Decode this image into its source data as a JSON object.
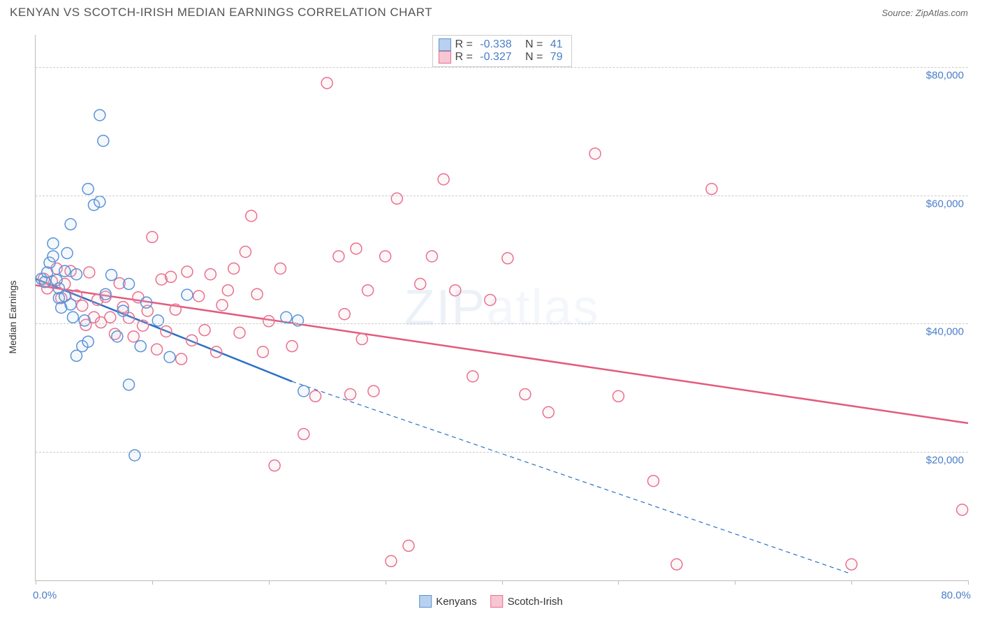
{
  "title": "KENYAN VS SCOTCH-IRISH MEDIAN EARNINGS CORRELATION CHART",
  "source": "Source: ZipAtlas.com",
  "y_axis_title": "Median Earnings",
  "watermark": {
    "bold": "ZIP",
    "light": "atlas"
  },
  "chart": {
    "type": "scatter",
    "background_color": "#ffffff",
    "grid_color": "#cccccc",
    "axis_color": "#bbbbbb",
    "xlim": [
      0,
      80
    ],
    "ylim": [
      0,
      85000
    ],
    "x_ticks": [
      0,
      10,
      20,
      30,
      40,
      50,
      60,
      70,
      80
    ],
    "x_range_labels": [
      "0.0%",
      "80.0%"
    ],
    "y_gridlines": [
      20000,
      40000,
      60000,
      80000
    ],
    "y_labels": [
      "$20,000",
      "$40,000",
      "$60,000",
      "$80,000"
    ],
    "label_color": "#4a7ec9",
    "label_fontsize": 15,
    "marker_radius": 8,
    "marker_stroke_width": 1.5,
    "marker_fill_opacity": 0.15
  },
  "top_legend": [
    {
      "swatch_fill": "#b8d1ee",
      "swatch_stroke": "#5a93d6",
      "R": "-0.338",
      "N": "41"
    },
    {
      "swatch_fill": "#f6c6d2",
      "swatch_stroke": "#e8708f",
      "R": "-0.327",
      "N": "79"
    }
  ],
  "bottom_legend": [
    {
      "label": "Kenyans",
      "swatch_fill": "#b8d1ee",
      "swatch_stroke": "#5a93d6"
    },
    {
      "label": "Scotch-Irish",
      "swatch_fill": "#f6c6d2",
      "swatch_stroke": "#e8708f"
    }
  ],
  "series": [
    {
      "name": "Kenyans",
      "color_stroke": "#5a93d6",
      "color_fill": "#b8d1ee",
      "trend": {
        "color": "#2b6fc4",
        "width": 2.5,
        "x1": 0,
        "y1": 47000,
        "x2": 22,
        "y2": 31000,
        "dash_extend_to_x": 70,
        "dash_y": 1000
      },
      "points": [
        [
          0.5,
          47000
        ],
        [
          0.8,
          46500
        ],
        [
          1.0,
          48000
        ],
        [
          1.2,
          49500
        ],
        [
          1.5,
          50500
        ],
        [
          1.5,
          52500
        ],
        [
          1.8,
          46800
        ],
        [
          2.0,
          44000
        ],
        [
          2.0,
          45500
        ],
        [
          2.2,
          42500
        ],
        [
          2.5,
          44300
        ],
        [
          2.5,
          48200
        ],
        [
          2.7,
          51000
        ],
        [
          3.0,
          55500
        ],
        [
          3.0,
          43000
        ],
        [
          3.2,
          41000
        ],
        [
          3.5,
          47700
        ],
        [
          3.5,
          35000
        ],
        [
          4.0,
          36500
        ],
        [
          4.2,
          40500
        ],
        [
          4.5,
          37200
        ],
        [
          4.5,
          61000
        ],
        [
          5.0,
          58500
        ],
        [
          5.5,
          59000
        ],
        [
          5.5,
          72500
        ],
        [
          5.8,
          68500
        ],
        [
          6.0,
          44600
        ],
        [
          6.5,
          47600
        ],
        [
          7.0,
          38000
        ],
        [
          7.5,
          42000
        ],
        [
          8.0,
          46200
        ],
        [
          8.0,
          30500
        ],
        [
          8.5,
          19500
        ],
        [
          9.0,
          36500
        ],
        [
          9.5,
          43300
        ],
        [
          10.5,
          40500
        ],
        [
          11.5,
          34800
        ],
        [
          13.0,
          44500
        ],
        [
          21.5,
          41000
        ],
        [
          22.5,
          40500
        ],
        [
          23.0,
          29500
        ]
      ]
    },
    {
      "name": "Scotch-Irish",
      "color_stroke": "#e8708f",
      "color_fill": "#f6c6d2",
      "trend": {
        "color": "#e35a7d",
        "width": 2.5,
        "x1": 0,
        "y1": 46000,
        "x2": 80,
        "y2": 24500
      },
      "points": [
        [
          0.7,
          47000
        ],
        [
          1.0,
          45500
        ],
        [
          1.4,
          46600
        ],
        [
          1.8,
          48600
        ],
        [
          2.2,
          44000
        ],
        [
          2.5,
          46200
        ],
        [
          3.0,
          48200
        ],
        [
          3.5,
          44400
        ],
        [
          4.0,
          42800
        ],
        [
          4.3,
          39800
        ],
        [
          4.6,
          48000
        ],
        [
          5.0,
          41000
        ],
        [
          5.3,
          43700
        ],
        [
          5.6,
          40200
        ],
        [
          6.0,
          44200
        ],
        [
          6.4,
          41000
        ],
        [
          6.8,
          38400
        ],
        [
          7.2,
          46300
        ],
        [
          7.5,
          42600
        ],
        [
          8.0,
          40900
        ],
        [
          8.4,
          38000
        ],
        [
          8.8,
          44100
        ],
        [
          9.2,
          39700
        ],
        [
          9.6,
          42000
        ],
        [
          10.0,
          53500
        ],
        [
          10.4,
          36000
        ],
        [
          10.8,
          46900
        ],
        [
          11.2,
          38800
        ],
        [
          11.6,
          47300
        ],
        [
          12.0,
          42200
        ],
        [
          12.5,
          34500
        ],
        [
          13.0,
          48100
        ],
        [
          13.4,
          37400
        ],
        [
          14.0,
          44300
        ],
        [
          14.5,
          39000
        ],
        [
          15.0,
          47700
        ],
        [
          15.5,
          35600
        ],
        [
          16.0,
          42900
        ],
        [
          16.5,
          45200
        ],
        [
          17.0,
          48600
        ],
        [
          17.5,
          38600
        ],
        [
          18.0,
          51200
        ],
        [
          18.5,
          56800
        ],
        [
          19.0,
          44600
        ],
        [
          19.5,
          35600
        ],
        [
          20.0,
          40400
        ],
        [
          20.5,
          17900
        ],
        [
          21.0,
          48600
        ],
        [
          22.0,
          36500
        ],
        [
          23.0,
          22800
        ],
        [
          24.0,
          28700
        ],
        [
          25.0,
          77500
        ],
        [
          26.0,
          50500
        ],
        [
          26.5,
          41500
        ],
        [
          27.0,
          29000
        ],
        [
          27.5,
          51700
        ],
        [
          28.0,
          37600
        ],
        [
          28.5,
          45200
        ],
        [
          29.0,
          29500
        ],
        [
          30.0,
          50500
        ],
        [
          30.5,
          3000
        ],
        [
          31.0,
          59500
        ],
        [
          32.0,
          5400
        ],
        [
          33.0,
          46200
        ],
        [
          34.0,
          50500
        ],
        [
          35.0,
          62500
        ],
        [
          36.0,
          45200
        ],
        [
          37.5,
          31800
        ],
        [
          39.0,
          43700
        ],
        [
          40.5,
          50200
        ],
        [
          42.0,
          29000
        ],
        [
          44.0,
          26200
        ],
        [
          48.0,
          66500
        ],
        [
          50.0,
          28700
        ],
        [
          53.0,
          15500
        ],
        [
          55.0,
          2500
        ],
        [
          58.0,
          61000
        ],
        [
          70.0,
          2500
        ],
        [
          79.5,
          11000
        ]
      ]
    }
  ]
}
